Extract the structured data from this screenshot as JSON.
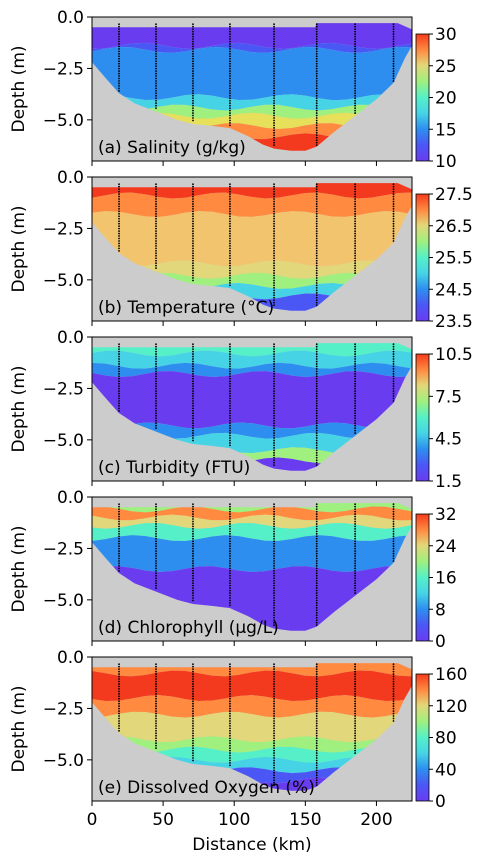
{
  "figure": {
    "xlabel": "Distance (km)",
    "ylabel": "Depth (m)",
    "xlim": [
      0,
      225
    ],
    "ylim": [
      0.0,
      -7.0
    ],
    "x_ticks": [
      0,
      50,
      100,
      150,
      200
    ],
    "y_ticks": [
      0.0,
      -2.5,
      -5.0
    ],
    "y_tick_labels": [
      "0.0",
      "−2.5",
      "−5.0"
    ],
    "background_color": "#cccccc",
    "station_distances_km": [
      19,
      45,
      71,
      97,
      128,
      158,
      185,
      212
    ]
  },
  "chart_data": [
    {
      "type": "heatmap",
      "label": "(a) Salinity (g/kg)",
      "variable": "Salinity",
      "units": "g/kg",
      "colorbar": {
        "ticks": [
          30,
          25,
          20,
          15,
          10
        ],
        "range": [
          10,
          30
        ]
      },
      "layers": [
        {
          "depth": -0.5,
          "value": 10,
          "color": "#6a3cf0"
        },
        {
          "depth": -1.4,
          "value": 12.5,
          "color": "#4b57f5"
        },
        {
          "depth": -1.6,
          "value": 14,
          "color": "#2e8ef0"
        },
        {
          "depth": -3.9,
          "value": 17,
          "color": "#46d3e6"
        },
        {
          "depth": -4.4,
          "value": 20,
          "color": "#9ff07e"
        },
        {
          "depth": -4.8,
          "value": 22,
          "color": "#e7e05a"
        },
        {
          "depth": -5.3,
          "value": 25,
          "color": "#ff8a40"
        },
        {
          "depth": -5.8,
          "value": 28,
          "color": "#f33a1e"
        }
      ]
    },
    {
      "type": "heatmap",
      "label": "(b) Temperature (°C)",
      "variable": "Temperature",
      "units": "°C",
      "colorbar": {
        "ticks": [
          "27.5",
          "26.5",
          "25.5",
          "24.5",
          "23.5"
        ],
        "range": [
          23.5,
          28.0
        ]
      },
      "layers": [
        {
          "depth": -0.3,
          "value": 28.0,
          "color": "#f33a1e"
        },
        {
          "depth": -0.9,
          "value": 27.7,
          "color": "#ff8a40"
        },
        {
          "depth": -1.8,
          "value": 27.3,
          "color": "#f2c46e"
        },
        {
          "depth": -4.2,
          "value": 26.5,
          "color": "#e2d77a"
        },
        {
          "depth": -4.8,
          "value": 25.5,
          "color": "#9ff07e"
        },
        {
          "depth": -5.3,
          "value": 24.8,
          "color": "#46d3e6"
        },
        {
          "depth": -5.8,
          "value": 24.0,
          "color": "#4b57f5"
        }
      ]
    },
    {
      "type": "heatmap",
      "label": "(c) Turbidity (FTU)",
      "variable": "Turbidity",
      "units": "FTU",
      "colorbar": {
        "ticks": [
          "10.5",
          "7.5",
          "4.5",
          "1.5"
        ],
        "range": [
          1.5,
          10.5
        ]
      },
      "layers": [
        {
          "depth": -0.3,
          "value": 5.0,
          "color": "#55f0c8"
        },
        {
          "depth": -0.8,
          "value": 4.0,
          "color": "#46d3e6"
        },
        {
          "depth": -1.4,
          "value": 3.0,
          "color": "#2e8ef0"
        },
        {
          "depth": -1.8,
          "value": 2.0,
          "color": "#6a3cf0"
        },
        {
          "depth": -4.3,
          "value": 3.0,
          "color": "#2e8ef0"
        },
        {
          "depth": -4.8,
          "value": 4.5,
          "color": "#46d3e6"
        },
        {
          "depth": -5.5,
          "value": 6.0,
          "color": "#9ff07e"
        },
        {
          "depth": -6.0,
          "value": 2.0,
          "color": "#6a3cf0"
        }
      ]
    },
    {
      "type": "heatmap",
      "label": "(d) Chlorophyll (μg/L)",
      "variable": "Chlorophyll",
      "units": "μg/L",
      "colorbar": {
        "ticks": [
          32,
          24,
          16,
          8,
          0
        ],
        "range": [
          0,
          36
        ]
      },
      "layers": [
        {
          "depth": -0.2,
          "value": 22,
          "color": "#9ff07e"
        },
        {
          "depth": -0.6,
          "value": 30,
          "color": "#ff8a40"
        },
        {
          "depth": -1.0,
          "value": 20,
          "color": "#e2d77a"
        },
        {
          "depth": -1.4,
          "value": 14,
          "color": "#55f0c8"
        },
        {
          "depth": -2.0,
          "value": 8,
          "color": "#2e8ef0"
        },
        {
          "depth": -3.5,
          "value": 2,
          "color": "#6a3cf0"
        }
      ]
    },
    {
      "type": "heatmap",
      "label": "(e) Dissolved Oxygen (%)",
      "variable": "Dissolved Oxygen",
      "units": "%",
      "colorbar": {
        "ticks": [
          160,
          120,
          80,
          40,
          0
        ],
        "range": [
          0,
          165
        ]
      },
      "layers": [
        {
          "depth": -0.3,
          "value": 130,
          "color": "#ff8a40"
        },
        {
          "depth": -0.8,
          "value": 155,
          "color": "#f33a1e"
        },
        {
          "depth": -2.0,
          "value": 130,
          "color": "#ff8a40"
        },
        {
          "depth": -2.8,
          "value": 110,
          "color": "#e2d77a"
        },
        {
          "depth": -4.0,
          "value": 85,
          "color": "#9ff07e"
        },
        {
          "depth": -4.5,
          "value": 60,
          "color": "#55f0c8"
        },
        {
          "depth": -5.0,
          "value": 40,
          "color": "#46d3e6"
        },
        {
          "depth": -5.5,
          "value": 20,
          "color": "#4b57f5"
        },
        {
          "depth": -6.0,
          "value": 5,
          "color": "#6a3cf0"
        }
      ]
    }
  ],
  "bathymetry": {
    "distance_km": [
      0,
      10,
      19,
      30,
      45,
      60,
      71,
      85,
      97,
      110,
      120,
      128,
      140,
      150,
      158,
      170,
      185,
      200,
      212,
      220,
      225
    ],
    "bottom_depth_m": [
      -2.2,
      -3.0,
      -3.7,
      -4.2,
      -4.6,
      -5.0,
      -5.2,
      -5.3,
      -5.4,
      -5.8,
      -6.2,
      -6.4,
      -6.5,
      -6.5,
      -6.3,
      -5.6,
      -4.8,
      -4.0,
      -3.2,
      -2.0,
      -1.4
    ]
  },
  "surface": {
    "distance_km": [
      0,
      157,
      158,
      215,
      225
    ],
    "surface_depth_m": [
      -0.5,
      -0.5,
      -0.3,
      -0.3,
      -0.6
    ]
  },
  "colormap_stops": [
    "#6a3cf0",
    "#4b57f5",
    "#2e8ef0",
    "#46d3e6",
    "#55f0c8",
    "#9ff07e",
    "#e2d77a",
    "#ff8a40",
    "#f33a1e"
  ]
}
